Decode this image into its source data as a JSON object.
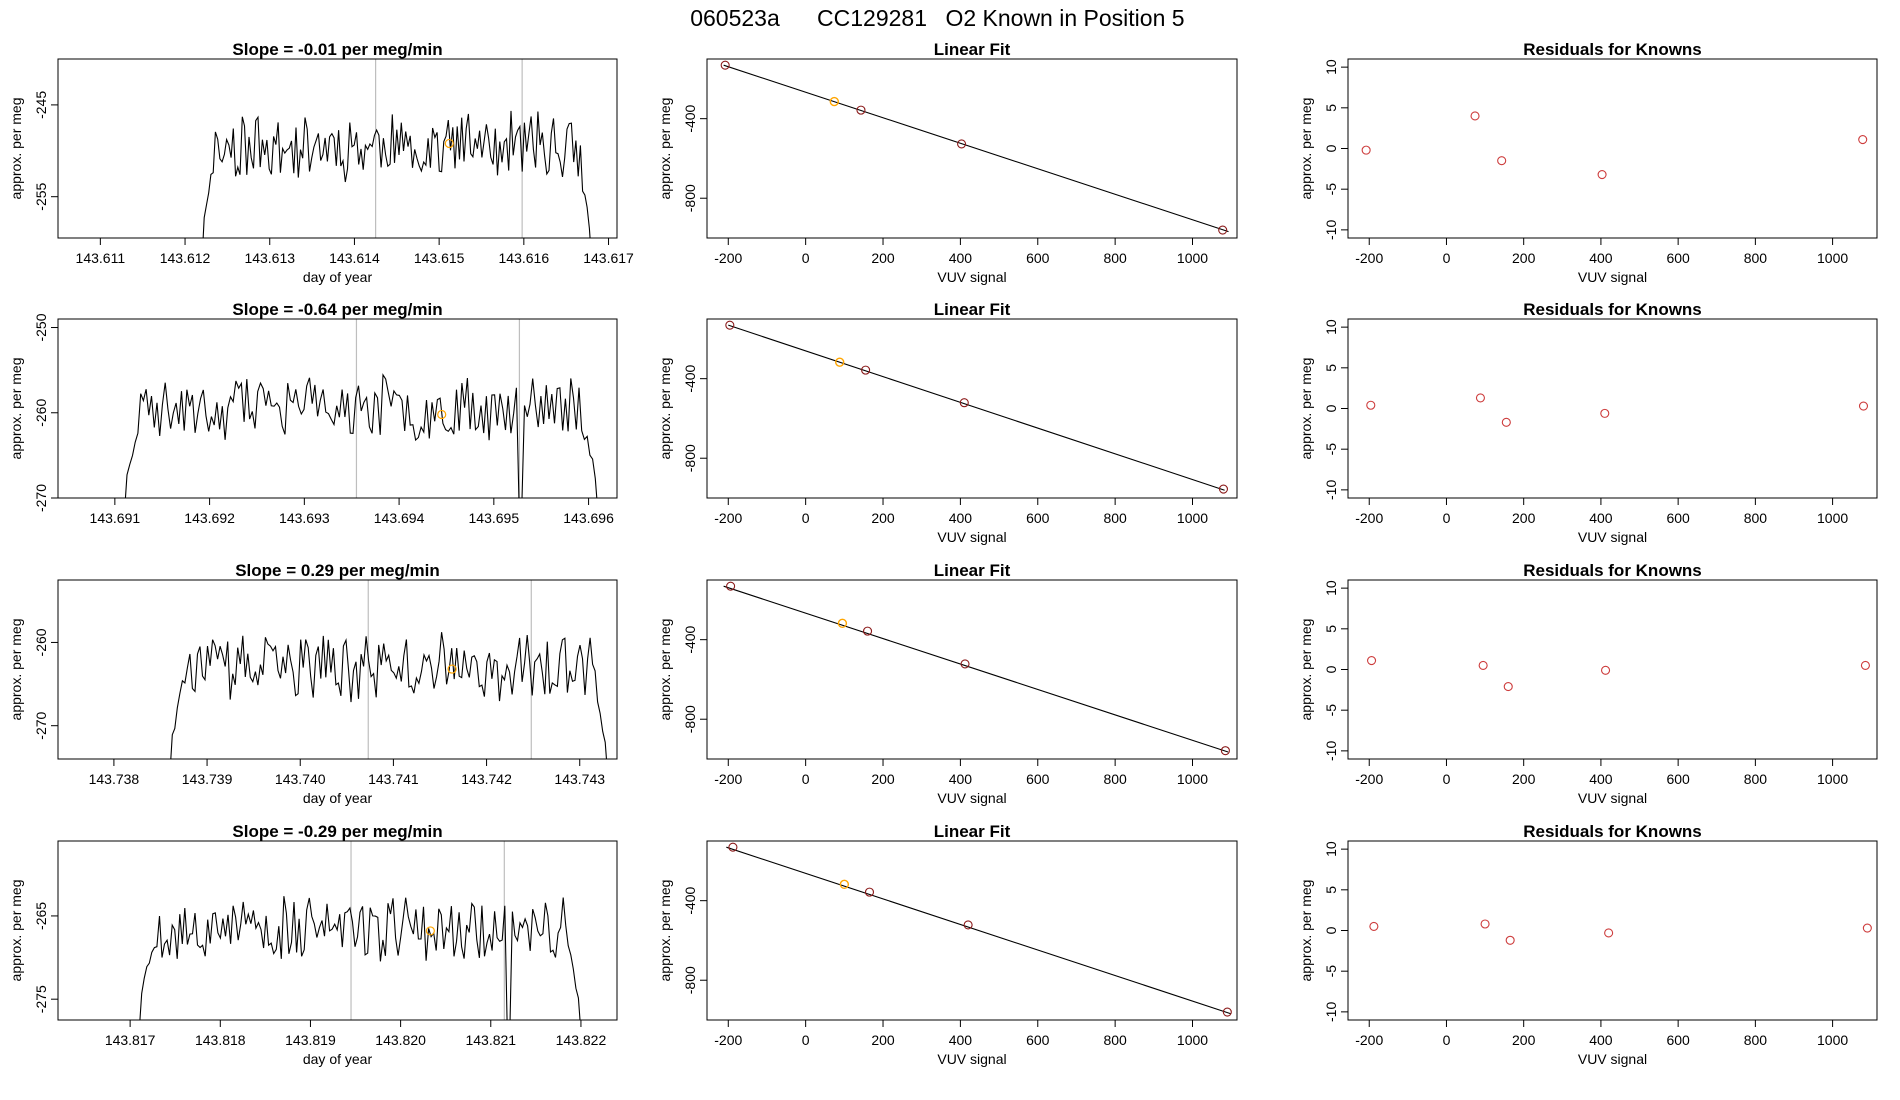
{
  "header": {
    "run_id": "060523a",
    "cylinder": "CC129281",
    "description": "O2 Known in Position  5"
  },
  "colors": {
    "axis": "#000000",
    "trace": "#000000",
    "vline": "#bebebe",
    "highlight": "#ffa500",
    "residual": "#cd3c3c"
  },
  "chart_data": [
    {
      "type": "line",
      "row": 0,
      "col": 0,
      "title": "Slope =  -0.01  per meg/min",
      "xlabel": "day of year",
      "ylabel": "approx. per meg",
      "xlim": [
        143.6105,
        143.6171
      ],
      "ylim": [
        -259.5,
        -240
      ],
      "xticks": [
        143.611,
        143.612,
        143.613,
        143.614,
        143.615,
        143.616,
        143.617
      ],
      "xtick_labels": [
        "143.611",
        "143.612",
        "143.613",
        "143.614",
        "143.615",
        "143.616",
        "143.617"
      ],
      "yticks": [
        -245,
        -255
      ],
      "ytick_labels": [
        "-245",
        "-255"
      ],
      "vlines": [
        143.61425,
        143.61598
      ],
      "trace": {
        "x_start": 143.6122,
        "x_end": 143.6168,
        "plateau": -249.5,
        "noise": 2.0,
        "seed": 11,
        "y_low": -262
      },
      "marker": {
        "x": 143.61512,
        "y": -249.2
      }
    },
    {
      "type": "scatter",
      "row": 0,
      "col": 1,
      "title": "Linear Fit",
      "xlabel": "VUV signal",
      "ylabel": "approx. per meg",
      "xlim": [
        -255,
        1115
      ],
      "ylim": [
        -1000,
        -100
      ],
      "xticks": [
        -200,
        0,
        200,
        400,
        600,
        800,
        1000
      ],
      "xtick_labels": [
        "-200",
        "0",
        "200",
        "400",
        "600",
        "800",
        "1000"
      ],
      "yticks": [
        -400,
        -800
      ],
      "ytick_labels": [
        "-400",
        "-800"
      ],
      "fit_line": {
        "x": [
          -212,
          1093
        ],
        "y": [
          -131,
          -968
        ]
      },
      "points": [
        {
          "x": -208,
          "y": -131
        },
        {
          "x": 143,
          "y": -357
        },
        {
          "x": 403,
          "y": -527
        },
        {
          "x": 1078,
          "y": -960
        }
      ],
      "highlight": {
        "x": 74,
        "y": -314
      }
    },
    {
      "type": "scatter",
      "row": 0,
      "col": 2,
      "title": "Residuals for Knowns",
      "xlabel": "VUV signal",
      "ylabel": "approx. per meg",
      "xlim": [
        -255,
        1115
      ],
      "ylim": [
        -11,
        11
      ],
      "xticks": [
        -200,
        0,
        200,
        400,
        600,
        800,
        1000
      ],
      "xtick_labels": [
        "-200",
        "0",
        "200",
        "400",
        "600",
        "800",
        "1000"
      ],
      "yticks": [
        10,
        5,
        0,
        -5,
        -10
      ],
      "ytick_labels": [
        "10",
        "5",
        "0",
        "-5",
        "-10"
      ],
      "points": [
        {
          "x": -208,
          "y": -0.2
        },
        {
          "x": 74,
          "y": 4.0
        },
        {
          "x": 143,
          "y": -1.5
        },
        {
          "x": 403,
          "y": -3.2
        },
        {
          "x": 1078,
          "y": 1.1
        }
      ]
    },
    {
      "type": "line",
      "row": 1,
      "col": 0,
      "title": "Slope =  -0.64  per meg/min",
      "xlabel": "",
      "ylabel": "approx. per meg",
      "xlim": [
        143.6904,
        143.6963
      ],
      "ylim": [
        -270,
        -249
      ],
      "xticks": [
        143.691,
        143.692,
        143.693,
        143.694,
        143.695,
        143.696
      ],
      "xtick_labels": [
        "143.691",
        "143.692",
        "143.693",
        "143.694",
        "143.695",
        "143.696"
      ],
      "yticks": [
        -250,
        -260,
        -270
      ],
      "ytick_labels": [
        "-250",
        "-260",
        "-270"
      ],
      "vlines": [
        143.69355,
        143.69527
      ],
      "trace": {
        "x_start": 143.6911,
        "x_end": 143.6961,
        "plateau": -259.5,
        "noise": 2.1,
        "seed": 23,
        "y_low": -272,
        "dip": {
          "x": 143.69528,
          "y": -271
        }
      },
      "marker": {
        "x": 143.69445,
        "y": -260.2
      }
    },
    {
      "type": "scatter",
      "row": 1,
      "col": 1,
      "title": "Linear Fit",
      "xlabel": "VUV signal",
      "ylabel": "approx. per meg",
      "xlim": [
        -255,
        1115
      ],
      "ylim": [
        -1000,
        -100
      ],
      "xticks": [
        -200,
        0,
        200,
        400,
        600,
        800,
        1000
      ],
      "xtick_labels": [
        "-200",
        "0",
        "200",
        "400",
        "600",
        "800",
        "1000"
      ],
      "yticks": [
        -400,
        -800
      ],
      "ytick_labels": [
        "-400",
        "-800"
      ],
      "fit_line": {
        "x": [
          -200,
          1083
        ],
        "y": [
          -131,
          -961
        ]
      },
      "points": [
        {
          "x": -196,
          "y": -131
        },
        {
          "x": 155,
          "y": -357
        },
        {
          "x": 410,
          "y": -521
        },
        {
          "x": 1080,
          "y": -955
        }
      ],
      "highlight": {
        "x": 88,
        "y": -317
      }
    },
    {
      "type": "scatter",
      "row": 1,
      "col": 2,
      "title": "Residuals for Knowns",
      "xlabel": "VUV signal",
      "ylabel": "approx. per meg",
      "xlim": [
        -255,
        1115
      ],
      "ylim": [
        -11,
        11
      ],
      "xticks": [
        -200,
        0,
        200,
        400,
        600,
        800,
        1000
      ],
      "xtick_labels": [
        "-200",
        "0",
        "200",
        "400",
        "600",
        "800",
        "1000"
      ],
      "yticks": [
        10,
        5,
        0,
        -5,
        -10
      ],
      "ytick_labels": [
        "10",
        "5",
        "0",
        "-5",
        "-10"
      ],
      "points": [
        {
          "x": -196,
          "y": 0.4
        },
        {
          "x": 88,
          "y": 1.3
        },
        {
          "x": 155,
          "y": -1.7
        },
        {
          "x": 410,
          "y": -0.6
        },
        {
          "x": 1080,
          "y": 0.3
        }
      ]
    },
    {
      "type": "line",
      "row": 2,
      "col": 0,
      "title": "Slope =  0.29  per meg/min",
      "xlabel": "day of year",
      "ylabel": "approx. per meg",
      "xlim": [
        143.7374,
        143.7434
      ],
      "ylim": [
        -274,
        -252.5
      ],
      "xticks": [
        143.738,
        143.739,
        143.74,
        143.741,
        143.742,
        143.743
      ],
      "xtick_labels": [
        "143.738",
        "143.739",
        "143.740",
        "143.741",
        "143.742",
        "143.743"
      ],
      "yticks": [
        -260,
        -270
      ],
      "ytick_labels": [
        "-260",
        "-270"
      ],
      "vlines": [
        143.74073,
        143.74248
      ],
      "trace": {
        "x_start": 143.7386,
        "x_end": 143.7433,
        "plateau": -263,
        "noise": 2.2,
        "seed": 37,
        "y_low": -276
      },
      "marker": {
        "x": 143.74163,
        "y": -263.2
      }
    },
    {
      "type": "scatter",
      "row": 2,
      "col": 1,
      "title": "Linear Fit",
      "xlabel": "VUV signal",
      "ylabel": "approx. per meg",
      "xlim": [
        -255,
        1115
      ],
      "ylim": [
        -1000,
        -100
      ],
      "xticks": [
        -200,
        0,
        200,
        400,
        600,
        800,
        1000
      ],
      "xtick_labels": [
        "-200",
        "0",
        "200",
        "400",
        "600",
        "800",
        "1000"
      ],
      "yticks": [
        -400,
        -800
      ],
      "ytick_labels": [
        "-400",
        "-800"
      ],
      "fit_line": {
        "x": [
          -212,
          1092
        ],
        "y": [
          -131,
          -965
        ]
      },
      "points": [
        {
          "x": -194,
          "y": -131
        },
        {
          "x": 160,
          "y": -357
        },
        {
          "x": 412,
          "y": -522
        },
        {
          "x": 1085,
          "y": -958
        }
      ],
      "highlight": {
        "x": 95,
        "y": -318
      }
    },
    {
      "type": "scatter",
      "row": 2,
      "col": 2,
      "title": "Residuals for Knowns",
      "xlabel": "VUV signal",
      "ylabel": "approx. per meg",
      "xlim": [
        -255,
        1115
      ],
      "ylim": [
        -11,
        11
      ],
      "xticks": [
        -200,
        0,
        200,
        400,
        600,
        800,
        1000
      ],
      "xtick_labels": [
        "-200",
        "0",
        "200",
        "400",
        "600",
        "800",
        "1000"
      ],
      "yticks": [
        10,
        5,
        0,
        -5,
        -10
      ],
      "ytick_labels": [
        "10",
        "5",
        "0",
        "-5",
        "-10"
      ],
      "points": [
        {
          "x": -194,
          "y": 1.1
        },
        {
          "x": 95,
          "y": 0.5
        },
        {
          "x": 160,
          "y": -2.1
        },
        {
          "x": 412,
          "y": -0.1
        },
        {
          "x": 1085,
          "y": 0.5
        }
      ]
    },
    {
      "type": "line",
      "row": 3,
      "col": 0,
      "title": "Slope =  -0.29  per meg/min",
      "xlabel": "day of year",
      "ylabel": "approx. per meg",
      "xlim": [
        143.8162,
        143.8224
      ],
      "ylim": [
        -277.5,
        -256
      ],
      "xticks": [
        143.817,
        143.818,
        143.819,
        143.82,
        143.821,
        143.822
      ],
      "xtick_labels": [
        "143.817",
        "143.818",
        "143.819",
        "143.820",
        "143.821",
        "143.822"
      ],
      "yticks": [
        -265,
        -275
      ],
      "ytick_labels": [
        "-265",
        "-275"
      ],
      "vlines": [
        143.81945,
        143.82115
      ],
      "trace": {
        "x_start": 143.8171,
        "x_end": 143.822,
        "plateau": -266.5,
        "noise": 2.2,
        "seed": 53,
        "y_low": -279,
        "dip": {
          "x": 143.8212,
          "y": -279
        }
      },
      "marker": {
        "x": 143.82033,
        "y": -266.8
      }
    },
    {
      "type": "scatter",
      "row": 3,
      "col": 1,
      "title": "Linear Fit",
      "xlabel": "VUV signal",
      "ylabel": "approx. per meg",
      "xlim": [
        -255,
        1115
      ],
      "ylim": [
        -1000,
        -100
      ],
      "xticks": [
        -200,
        0,
        200,
        400,
        600,
        800,
        1000
      ],
      "xtick_labels": [
        "-200",
        "0",
        "200",
        "400",
        "600",
        "800",
        "1000"
      ],
      "yticks": [
        -400,
        -800
      ],
      "ytick_labels": [
        "-400",
        "-800"
      ],
      "fit_line": {
        "x": [
          -205,
          1098
        ],
        "y": [
          -131,
          -968
        ]
      },
      "points": [
        {
          "x": -188,
          "y": -131
        },
        {
          "x": 165,
          "y": -357
        },
        {
          "x": 420,
          "y": -522
        },
        {
          "x": 1090,
          "y": -960
        }
      ],
      "highlight": {
        "x": 100,
        "y": -318
      }
    },
    {
      "type": "scatter",
      "row": 3,
      "col": 2,
      "title": "Residuals for Knowns",
      "xlabel": "VUV signal",
      "ylabel": "approx. per meg",
      "xlim": [
        -255,
        1115
      ],
      "ylim": [
        -11,
        11
      ],
      "xticks": [
        -200,
        0,
        200,
        400,
        600,
        800,
        1000
      ],
      "xtick_labels": [
        "-200",
        "0",
        "200",
        "400",
        "600",
        "800",
        "1000"
      ],
      "yticks": [
        10,
        5,
        0,
        -5,
        -10
      ],
      "ytick_labels": [
        "10",
        "5",
        "0",
        "-5",
        "-10"
      ],
      "points": [
        {
          "x": -188,
          "y": 0.5
        },
        {
          "x": 100,
          "y": 0.8
        },
        {
          "x": 165,
          "y": -1.2
        },
        {
          "x": 420,
          "y": -0.3
        },
        {
          "x": 1090,
          "y": 0.3
        }
      ]
    }
  ]
}
